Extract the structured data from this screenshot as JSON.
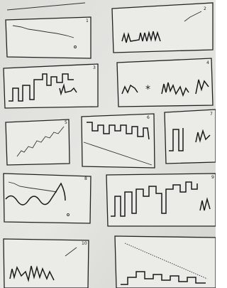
{
  "panels": [
    {
      "label": "1"
    },
    {
      "label": "2"
    },
    {
      "label": "3"
    },
    {
      "label": "4"
    },
    {
      "label": "5"
    },
    {
      "label": "6"
    },
    {
      "label": "7"
    },
    {
      "label": "8"
    },
    {
      "label": "9"
    },
    {
      "label": "10"
    }
  ]
}
